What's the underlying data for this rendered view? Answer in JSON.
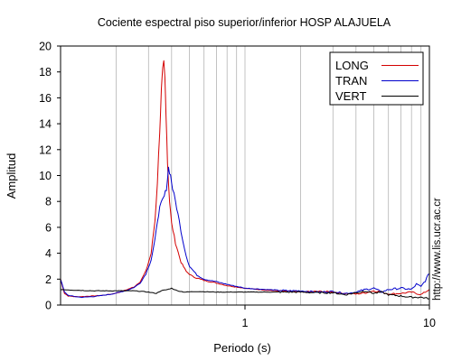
{
  "chart_data": {
    "type": "line",
    "title": "Cociente espectral piso superior/inferior  HOSP ALAJUELA",
    "xlabel": "Periodo (s)",
    "ylabel": "Amplitud",
    "xscale": "log",
    "xlim": [
      0.1,
      10
    ],
    "ylim": [
      0,
      20
    ],
    "x_ticks": [
      1,
      10
    ],
    "x_tick_labels": [
      "1",
      "10"
    ],
    "y_ticks": [
      0,
      2,
      4,
      6,
      8,
      10,
      12,
      14,
      16,
      18,
      20
    ],
    "y_tick_labels": [
      "0",
      "2",
      "4",
      "6",
      "8",
      "10",
      "12",
      "14",
      "16",
      "18",
      "20"
    ],
    "grid": true,
    "legend_position": "top-right",
    "side_annotation": "http://www.lis.ucr.ac.cr",
    "series": [
      {
        "name": "LONG",
        "color": "#d40000",
        "points": [
          [
            0.1,
            2.0
          ],
          [
            0.105,
            0.9
          ],
          [
            0.11,
            0.7
          ],
          [
            0.12,
            0.65
          ],
          [
            0.13,
            0.65
          ],
          [
            0.15,
            0.7
          ],
          [
            0.17,
            0.75
          ],
          [
            0.19,
            0.85
          ],
          [
            0.21,
            1.0
          ],
          [
            0.23,
            1.2
          ],
          [
            0.25,
            1.4
          ],
          [
            0.27,
            1.8
          ],
          [
            0.29,
            2.6
          ],
          [
            0.31,
            4.0
          ],
          [
            0.325,
            6.5
          ],
          [
            0.335,
            9.5
          ],
          [
            0.345,
            13.5
          ],
          [
            0.352,
            16.5
          ],
          [
            0.358,
            18.0
          ],
          [
            0.363,
            18.6
          ],
          [
            0.368,
            17.5
          ],
          [
            0.373,
            15.0
          ],
          [
            0.38,
            11.0
          ],
          [
            0.39,
            8.0
          ],
          [
            0.4,
            6.3
          ],
          [
            0.42,
            4.8
          ],
          [
            0.45,
            3.3
          ],
          [
            0.48,
            2.6
          ],
          [
            0.52,
            2.2
          ],
          [
            0.6,
            1.9
          ],
          [
            0.7,
            1.7
          ],
          [
            0.8,
            1.5
          ],
          [
            1.0,
            1.3
          ],
          [
            1.3,
            1.15
          ],
          [
            1.7,
            1.05
          ],
          [
            2.0,
            1.0
          ],
          [
            2.5,
            1.05
          ],
          [
            3.0,
            1.0
          ],
          [
            3.5,
            0.9
          ],
          [
            4.0,
            0.85
          ],
          [
            4.5,
            0.95
          ],
          [
            5.0,
            1.1
          ],
          [
            5.5,
            1.0
          ],
          [
            6.0,
            0.85
          ],
          [
            7.0,
            0.9
          ],
          [
            8.0,
            1.0
          ],
          [
            9.0,
            0.8
          ],
          [
            10.0,
            1.2
          ]
        ]
      },
      {
        "name": "TRAN",
        "color": "#0000cc",
        "points": [
          [
            0.1,
            2.0
          ],
          [
            0.105,
            1.0
          ],
          [
            0.11,
            0.75
          ],
          [
            0.12,
            0.65
          ],
          [
            0.13,
            0.6
          ],
          [
            0.15,
            0.65
          ],
          [
            0.17,
            0.75
          ],
          [
            0.19,
            0.85
          ],
          [
            0.21,
            1.0
          ],
          [
            0.23,
            1.15
          ],
          [
            0.25,
            1.35
          ],
          [
            0.27,
            1.7
          ],
          [
            0.29,
            2.4
          ],
          [
            0.31,
            3.5
          ],
          [
            0.325,
            5.0
          ],
          [
            0.335,
            6.5
          ],
          [
            0.345,
            7.5
          ],
          [
            0.355,
            8.0
          ],
          [
            0.365,
            8.4
          ],
          [
            0.375,
            9.0
          ],
          [
            0.385,
            10.6
          ],
          [
            0.395,
            10.0
          ],
          [
            0.405,
            9.0
          ],
          [
            0.42,
            8.0
          ],
          [
            0.44,
            6.5
          ],
          [
            0.46,
            5.0
          ],
          [
            0.48,
            3.8
          ],
          [
            0.5,
            3.0
          ],
          [
            0.55,
            2.3
          ],
          [
            0.6,
            2.0
          ],
          [
            0.7,
            1.8
          ],
          [
            0.8,
            1.6
          ],
          [
            1.0,
            1.3
          ],
          [
            1.3,
            1.2
          ],
          [
            1.7,
            1.1
          ],
          [
            2.0,
            1.1
          ],
          [
            2.5,
            1.0
          ],
          [
            3.0,
            1.05
          ],
          [
            3.5,
            0.9
          ],
          [
            4.0,
            1.0
          ],
          [
            4.5,
            1.2
          ],
          [
            5.0,
            1.3
          ],
          [
            5.5,
            1.0
          ],
          [
            6.0,
            1.2
          ],
          [
            7.0,
            1.3
          ],
          [
            8.0,
            1.2
          ],
          [
            8.5,
            1.6
          ],
          [
            9.0,
            1.4
          ],
          [
            9.5,
            1.9
          ],
          [
            10.0,
            2.4
          ]
        ]
      },
      {
        "name": "VERT",
        "color": "#000000",
        "points": [
          [
            0.1,
            1.2
          ],
          [
            0.12,
            1.15
          ],
          [
            0.15,
            1.1
          ],
          [
            0.18,
            1.1
          ],
          [
            0.21,
            1.1
          ],
          [
            0.25,
            1.1
          ],
          [
            0.3,
            1.0
          ],
          [
            0.33,
            0.9
          ],
          [
            0.35,
            1.1
          ],
          [
            0.38,
            1.2
          ],
          [
            0.4,
            1.3
          ],
          [
            0.43,
            1.1
          ],
          [
            0.47,
            1.0
          ],
          [
            0.55,
            1.05
          ],
          [
            0.7,
            1.0
          ],
          [
            0.9,
            1.0
          ],
          [
            1.2,
            1.0
          ],
          [
            1.5,
            1.0
          ],
          [
            2.0,
            1.0
          ],
          [
            2.5,
            0.95
          ],
          [
            3.0,
            0.95
          ],
          [
            3.5,
            0.8
          ],
          [
            4.0,
            0.95
          ],
          [
            4.5,
            1.1
          ],
          [
            5.0,
            0.9
          ],
          [
            5.5,
            1.0
          ],
          [
            6.0,
            0.8
          ],
          [
            7.0,
            0.7
          ],
          [
            8.0,
            0.6
          ],
          [
            9.0,
            0.6
          ],
          [
            10.0,
            0.5
          ]
        ]
      }
    ]
  }
}
